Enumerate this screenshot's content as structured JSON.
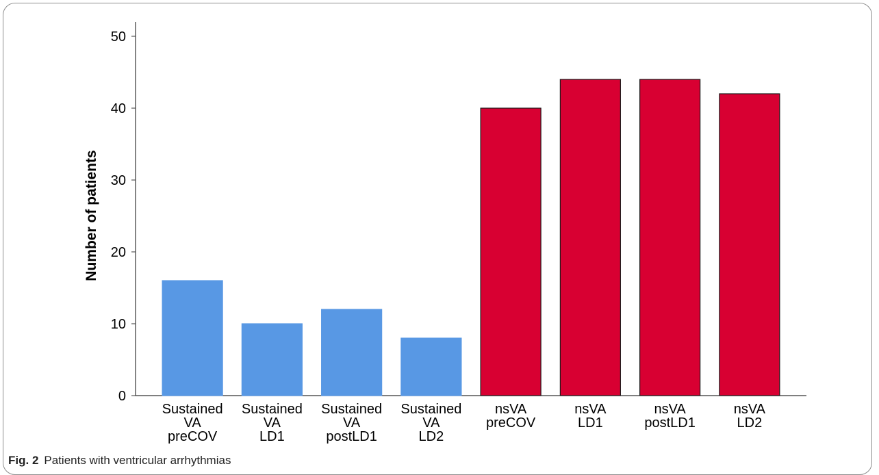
{
  "caption": {
    "label": "Fig. 2",
    "text": "Patients with ventricular arrhythmias"
  },
  "chart_data": {
    "type": "bar",
    "title": "",
    "xlabel": "",
    "ylabel": "Number of patients",
    "ylim": [
      0,
      52
    ],
    "yticks": [
      0,
      10,
      20,
      30,
      40,
      50
    ],
    "grid": false,
    "categories": [
      [
        "Sustained",
        "VA",
        "preCOV"
      ],
      [
        "Sustained",
        "VA",
        "LD1"
      ],
      [
        "Sustained",
        "VA",
        "postLD1"
      ],
      [
        "Sustained",
        "VA",
        "LD2"
      ],
      [
        "nsVA",
        "preCOV"
      ],
      [
        "nsVA",
        "LD1"
      ],
      [
        "nsVA",
        "postLD1"
      ],
      [
        "nsVA",
        "LD2"
      ]
    ],
    "values": [
      16,
      10,
      12,
      8,
      40,
      44,
      44,
      42
    ],
    "bar_colors": [
      "#5898e4",
      "#5898e4",
      "#5898e4",
      "#5898e4",
      "#d80032",
      "#d80032",
      "#d80032",
      "#d80032"
    ],
    "bar_edge_colors": [
      "#5898e4",
      "#5898e4",
      "#5898e4",
      "#5898e4",
      "#1a1a1a",
      "#1a1a1a",
      "#1a1a1a",
      "#1a1a1a"
    ]
  }
}
